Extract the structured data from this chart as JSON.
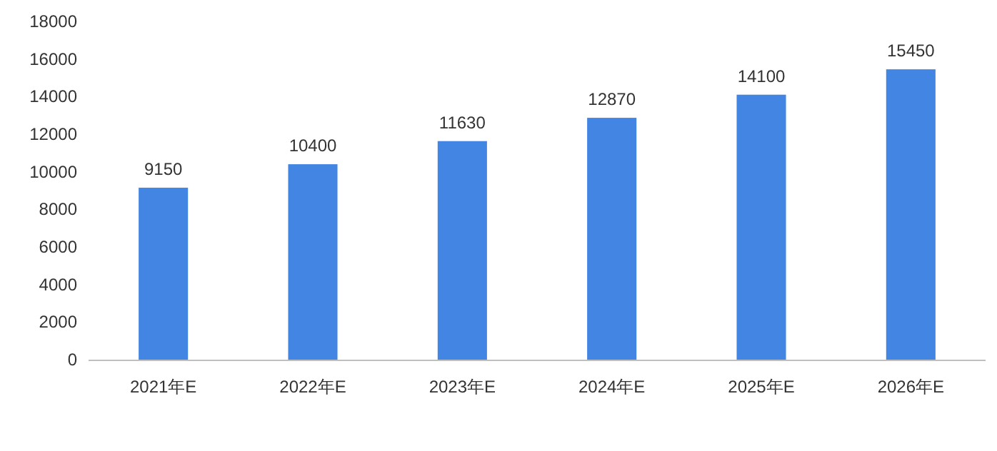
{
  "chart_data": {
    "type": "bar",
    "categories": [
      "2021年E",
      "2022年E",
      "2023年E",
      "2024年E",
      "2025年E",
      "2026年E"
    ],
    "values": [
      9150,
      10400,
      11630,
      12870,
      14100,
      15450
    ],
    "color": "#4285e2",
    "ylim": [
      0,
      18000
    ],
    "yticks": [
      0,
      2000,
      4000,
      6000,
      8000,
      10000,
      12000,
      14000,
      16000,
      18000
    ],
    "data_labels": true,
    "grid": false
  }
}
